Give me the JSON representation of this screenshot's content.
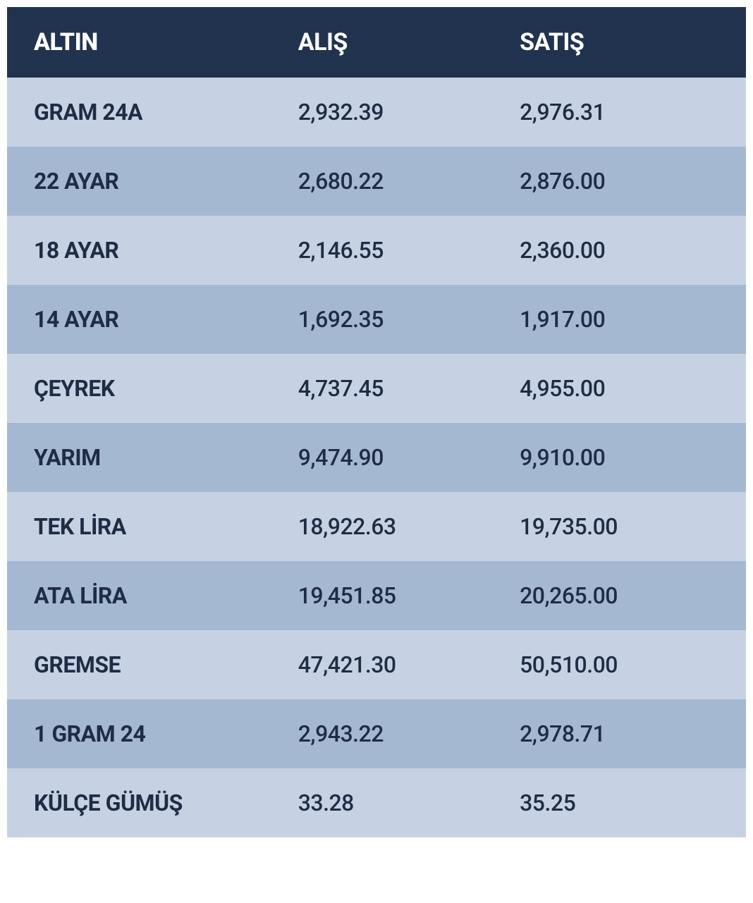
{
  "table": {
    "type": "table",
    "header_bg": "#21334f",
    "header_text_color": "#ffffff",
    "row_odd_bg": "#c6d2e4",
    "row_even_bg": "#a4b8d2",
    "data_text_color": "#1f2c44",
    "header_fontsize": 34,
    "data_fontsize": 32,
    "columns": [
      {
        "label": "ALTIN",
        "key": "name",
        "width": "39%",
        "align": "left",
        "padding_left": 38
      },
      {
        "label": "ALIŞ",
        "key": "buy",
        "width": "30%",
        "align": "left",
        "padding_left": 4
      },
      {
        "label": "SATIŞ",
        "key": "sell",
        "width": "31%",
        "align": "left",
        "padding_left": 4
      }
    ],
    "rows": [
      {
        "name": "GRAM 24A",
        "buy": "2,932.39",
        "sell": "2,976.31"
      },
      {
        "name": "22 AYAR",
        "buy": "2,680.22",
        "sell": "2,876.00"
      },
      {
        "name": "18 AYAR",
        "buy": "2,146.55",
        "sell": "2,360.00"
      },
      {
        "name": "14 AYAR",
        "buy": "1,692.35",
        "sell": "1,917.00"
      },
      {
        "name": "ÇEYREK",
        "buy": "4,737.45",
        "sell": "4,955.00"
      },
      {
        "name": "YARIM",
        "buy": "9,474.90",
        "sell": "9,910.00"
      },
      {
        "name": "TEK LİRA",
        "buy": "18,922.63",
        "sell": "19,735.00"
      },
      {
        "name": "ATA LİRA",
        "buy": "19,451.85",
        "sell": "20,265.00"
      },
      {
        "name": "GREMSE",
        "buy": "47,421.30",
        "sell": "50,510.00"
      },
      {
        "name": "1 GRAM 24",
        "buy": "2,943.22",
        "sell": "2,978.71"
      },
      {
        "name": "KÜLÇE GÜMÜŞ",
        "buy": "33.28",
        "sell": "35.25"
      }
    ]
  }
}
